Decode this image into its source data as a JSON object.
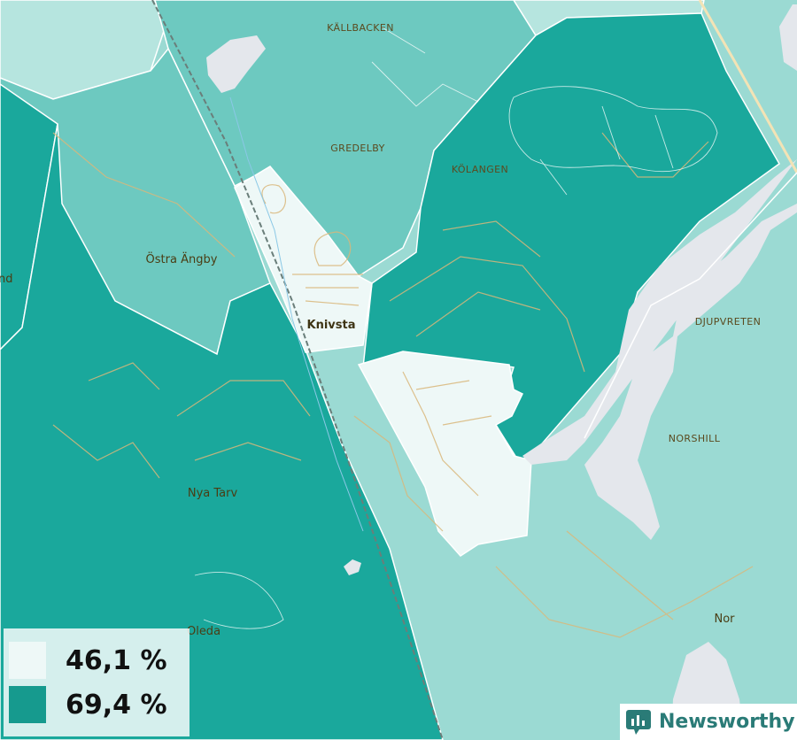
{
  "map": {
    "place_labels": {
      "kallbacken": "KÄLLBACKEN",
      "gredelby": "GREDELBY",
      "kolangen": "KÖLANGEN",
      "djupvreten": "DJUPVRETEN",
      "norshill": "NORSHILL",
      "ostra_angby": "Östra Ängby",
      "knivsta": "Knivsta",
      "nya_tarv": "Nya Tarv",
      "oleda": "Oleda",
      "nor": "Nor",
      "edge_fragment": "nd"
    },
    "colors": {
      "lowest_class": "#eef8f7",
      "class_2": "#b6e5df",
      "class_3": "#9bdad3",
      "class_4": "#6dc9c0",
      "highest_class": "#1aa89c",
      "water": "#e4e7ec",
      "boundary": "#ffffff",
      "roads": "#d9b77a"
    }
  },
  "legend": {
    "items": [
      {
        "label": "46,1 %",
        "color": "#eef8f7"
      },
      {
        "label": "69,4 %",
        "color": "#169a8e"
      }
    ]
  },
  "brand": {
    "name": "Newsworthy",
    "icon": "bar-chart-speech-icon"
  }
}
